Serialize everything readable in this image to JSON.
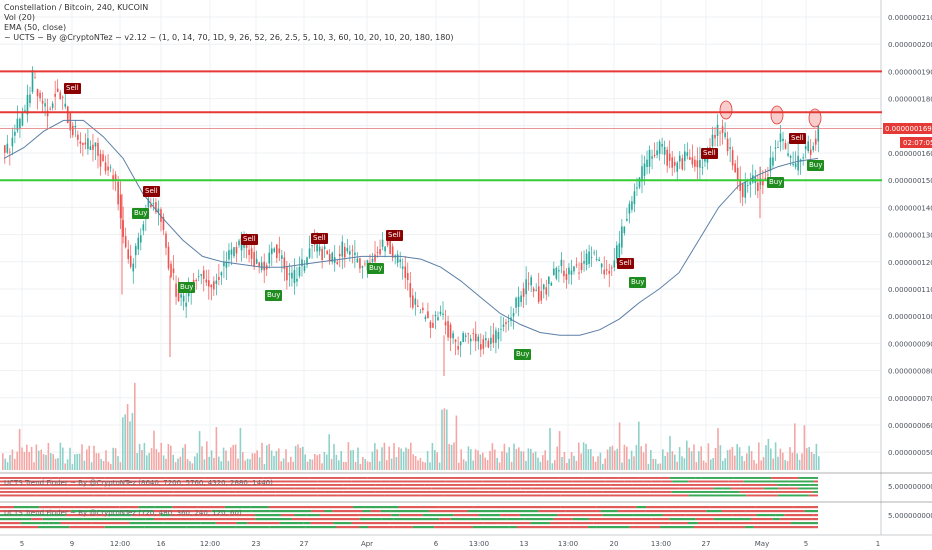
{
  "legend": {
    "title": "Constellation / Bitcoin, 240, KUCOIN",
    "vol": "Vol (20)",
    "ema": "EMA (50, close)",
    "ucts": "~ UCTS ~ By @CryptoNTez ~ v2.12 ~ (1, 0, 14, 70, 1D, 9, 26, 52, 26, 2.5, 5, 10, 3, 60, 10, 20, 10, 20, 180, 180)"
  },
  "subpanels": [
    {
      "title": "UCTS Trend Finder ~ By @CryptoNTez (8640, 7200, 5760, 4320, 2880, 1440)",
      "value": "5.0000000000"
    },
    {
      "title": "UCTS Trend Finder ~ By @CryptoNTez (720, 480, 360, 240, 120, 60)",
      "value": "5.0000000000"
    }
  ],
  "price_label": "0.0000001690",
  "countdown": "02:07:05",
  "colors": {
    "up": "#26a69a",
    "down": "#ef5350",
    "ema": "#5b7fa6",
    "red_line": "#e53935",
    "green_line": "#33cc33",
    "sell": "#8b0000",
    "buy": "#1e8c1e"
  },
  "chart_data": {
    "type": "candlestick",
    "title": "Constellation / Bitcoin, 240, KUCOIN",
    "y_ticks": [
      "0.0000002100",
      "0.0000002000",
      "0.0000001900",
      "0.0000001800",
      "0.0000001700",
      "0.0000001600",
      "0.0000001500",
      "0.0000001400",
      "0.0000001300",
      "0.0000001200",
      "0.0000001100",
      "0.0000001000",
      "0.0000000900",
      "0.0000000800",
      "0.0000000700",
      "0.0000000600",
      "0.0000000500"
    ],
    "x_ticks": [
      "5",
      "9",
      "12:00",
      "16",
      "12:00",
      "23",
      "27",
      "Apr",
      "6",
      "13:00",
      "13",
      "13:00",
      "20",
      "13:00",
      "27",
      "May",
      "5"
    ],
    "horizontal_lines": [
      {
        "value": 1.9e-07,
        "color": "red"
      },
      {
        "value": 1.75e-07,
        "color": "red"
      },
      {
        "value": 1.5e-07,
        "color": "green"
      }
    ],
    "close_series": [
      1.62,
      1.7,
      1.75,
      1.88,
      1.8,
      1.76,
      1.82,
      1.79,
      1.7,
      1.66,
      1.62,
      1.64,
      1.58,
      1.55,
      1.5,
      1.3,
      1.18,
      1.28,
      1.4,
      1.42,
      1.35,
      1.2,
      1.1,
      1.05,
      1.12,
      1.16,
      1.15,
      1.1,
      1.18,
      1.22,
      1.25,
      1.28,
      1.22,
      1.18,
      1.2,
      1.25,
      1.22,
      1.13,
      1.15,
      1.2,
      1.26,
      1.24,
      1.22,
      1.2,
      1.25,
      1.23,
      1.2,
      1.18,
      1.22,
      1.24,
      1.28,
      1.21,
      1.18,
      1.08,
      1.02,
      1.0,
      0.98,
      1.02,
      0.95,
      0.9,
      0.92,
      0.93,
      0.91,
      0.9,
      0.92,
      0.95,
      0.98,
      1.05,
      1.1,
      1.12,
      1.08,
      1.1,
      1.15,
      1.18,
      1.15,
      1.18,
      1.2,
      1.22,
      1.18,
      1.15,
      1.2,
      1.3,
      1.4,
      1.48,
      1.55,
      1.6,
      1.62,
      1.58,
      1.55,
      1.57,
      1.6,
      1.55,
      1.58,
      1.65,
      1.7,
      1.62,
      1.55,
      1.45,
      1.5,
      1.48,
      1.52,
      1.6,
      1.65,
      1.58,
      1.55,
      1.6,
      1.62,
      1.68
    ],
    "ema_series": [
      1.58,
      1.62,
      1.68,
      1.72,
      1.72,
      1.66,
      1.58,
      1.45,
      1.36,
      1.28,
      1.22,
      1.2,
      1.19,
      1.18,
      1.18,
      1.19,
      1.2,
      1.21,
      1.22,
      1.22,
      1.22,
      1.21,
      1.18,
      1.13,
      1.07,
      1.01,
      0.97,
      0.94,
      0.93,
      0.93,
      0.95,
      0.99,
      1.05,
      1.1,
      1.16,
      1.28,
      1.4,
      1.48,
      1.52,
      1.55,
      1.57,
      1.58
    ],
    "signals": [
      {
        "label": "Sell",
        "type": "sell"
      },
      {
        "label": "Sell",
        "type": "sell"
      },
      {
        "label": "Buy",
        "type": "buy"
      },
      {
        "label": "Buy",
        "type": "buy"
      },
      {
        "label": "Sell",
        "type": "sell"
      },
      {
        "label": "Buy",
        "type": "buy"
      },
      {
        "label": "Sell",
        "type": "sell"
      },
      {
        "label": "Sell",
        "type": "sell"
      },
      {
        "label": "Buy",
        "type": "buy"
      },
      {
        "label": "Buy",
        "type": "buy"
      },
      {
        "label": "Sell",
        "type": "sell"
      },
      {
        "label": "Buy",
        "type": "buy"
      },
      {
        "label": "Sell",
        "type": "sell"
      },
      {
        "label": "Buy",
        "type": "buy"
      },
      {
        "label": "Sell",
        "type": "sell"
      },
      {
        "label": "Buy",
        "type": "buy"
      }
    ]
  }
}
